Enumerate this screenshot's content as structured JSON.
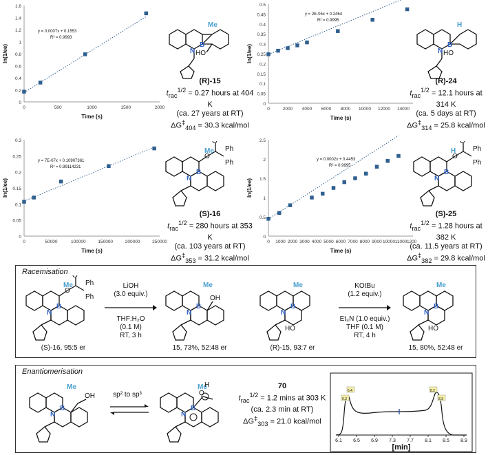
{
  "charts": [
    {
      "series_label": "",
      "equation": "y = 0.0007x + 0.1553",
      "r2": "R² = 0.9993",
      "xlabel": "Time (s)",
      "ylabel": "ln(1/ee)",
      "xticks": [
        "0",
        "500",
        "1000",
        "1500",
        "2000"
      ],
      "yticks": [
        "0",
        "0.2",
        "0.4",
        "0.6",
        "0.8",
        "1",
        "1.2",
        "1.4",
        "1.6"
      ],
      "compound": "(R)-15",
      "t_half": "= 0.27 hours at 404 K",
      "years": "(ca. 27 years at RT)",
      "dg": "= 30.3 kcal/mol",
      "dg_sub": "404"
    },
    {
      "equation": "y = 2E-05x + 0.2464",
      "r2": "R² = 0.9995",
      "xlabel": "Time (s)",
      "ylabel": "ln(1/ee)",
      "xticks": [
        "0",
        "2000",
        "4000",
        "6000",
        "8000",
        "10000",
        "12000",
        "14000"
      ],
      "yticks": [
        "0",
        "0.05",
        "0.1",
        "0.15",
        "0.2",
        "0.25",
        "0.3",
        "0.35",
        "0.4",
        "0.45",
        "0.5"
      ],
      "compound": "(R)-24",
      "t_half": "= 12.1 hours at 314 K",
      "years": "(ca. 5 days at RT)",
      "dg": "= 25.8 kcal/mol",
      "dg_sub": "314"
    },
    {
      "equation": "y = 7E-07x + 0.10907361",
      "r2": "R² = 0.99114231",
      "xlabel": "Time (s)",
      "ylabel": "ln(1/ee)",
      "xticks": [
        "0",
        "50000",
        "100000",
        "150000",
        "200000",
        "250000"
      ],
      "yticks": [
        "0",
        "0.05",
        "0.1",
        "0.15",
        "0.2",
        "0.25",
        "0.3"
      ],
      "compound": "(S)-16",
      "t_half": "= 280 hours at 353 K",
      "years": "(ca. 103 years at RT)",
      "dg": "= 31.2 kcal/mol",
      "dg_sub": "353"
    },
    {
      "equation": "y = 0.0002x + 0.4453",
      "r2": "R² = 0.9995",
      "xlabel": "Time (s)",
      "ylabel": "ln(1/ee)",
      "xticks": [
        "0",
        "1000",
        "2000",
        "3000",
        "4000",
        "5000",
        "6000",
        "7000",
        "8000",
        "9000",
        "10000",
        "11000",
        "12000"
      ],
      "yticks": [
        "0",
        "0.5",
        "1",
        "1.5",
        "2",
        "2.5"
      ],
      "compound": "(S)-25",
      "t_half": "= 1.28 hours at 382 K",
      "years": "(ca. 11.5 years at RT)",
      "dg": "= 29.8 kcal/mol",
      "dg_sub": "382"
    }
  ],
  "chart_data": [
    {
      "type": "scatter",
      "x": [
        0,
        240,
        900,
        1800
      ],
      "y": [
        0.17,
        0.32,
        0.79,
        1.47
      ],
      "xlim": [
        0,
        2000
      ],
      "ylim": [
        0,
        1.6
      ],
      "xlabel": "Time (s)",
      "ylabel": "ln(1/ee)",
      "trendline": {
        "slope": 0.0007,
        "intercept": 0.1553
      }
    },
    {
      "type": "scatter",
      "x": [
        0,
        1000,
        2000,
        3000,
        4000,
        7200,
        10800,
        14400
      ],
      "y": [
        0.247,
        0.265,
        0.278,
        0.292,
        0.307,
        0.364,
        0.421,
        0.474
      ],
      "xlim": [
        0,
        15000
      ],
      "ylim": [
        0,
        0.5
      ],
      "xlabel": "Time (s)",
      "ylabel": "ln(1/ee)",
      "trendline": {
        "slope": 2e-05,
        "intercept": 0.2464
      }
    },
    {
      "type": "scatter",
      "x": [
        0,
        18000,
        68000,
        156000,
        240000
      ],
      "y": [
        0.107,
        0.12,
        0.17,
        0.218,
        0.273
      ],
      "xlim": [
        0,
        250000
      ],
      "ylim": [
        0,
        0.3
      ],
      "xlabel": "Time (s)",
      "ylabel": "ln(1/ee)",
      "trendline": {
        "slope": 7e-07,
        "intercept": 0.10907361
      }
    },
    {
      "type": "scatter",
      "x": [
        0,
        900,
        1800,
        3600,
        4500,
        5400,
        6300,
        7200,
        8100,
        9000,
        9900,
        10800
      ],
      "y": [
        0.45,
        0.6,
        0.8,
        1.0,
        1.1,
        1.25,
        1.4,
        1.5,
        1.62,
        1.8,
        1.95,
        2.08
      ],
      "xlim": [
        0,
        12000
      ],
      "ylim": [
        0,
        2.5
      ],
      "xlabel": "Time (s)",
      "ylabel": "ln(1/ee)",
      "trendline": {
        "slope": 0.0002,
        "intercept": 0.4453
      }
    }
  ],
  "racemisation": {
    "title": "Racemisation",
    "left_reagent": "LiOH",
    "left_equiv": "(3.0 equiv.)",
    "left_solvent": "THF:H₂O",
    "left_conc": "(0.1 M)",
    "left_cond": "RT, 3 h",
    "left_start": "(S)-16, 95:5 er",
    "left_product": "15, 73%, 52:48 er",
    "right_reagent": "KOtBu",
    "right_equiv": "(1.2 equiv.)",
    "right_base": "Et₃N  (1.0 equiv.)",
    "right_solvent": "THF (0.1 M)",
    "right_cond": "RT, 4 h",
    "right_start": "(R)-15, 93:7 er",
    "right_product": "15, 80%, 52:48 er"
  },
  "enantiomerisation": {
    "title": "Enantiomerisation",
    "arrow_label": "sp² to sp³",
    "compound": "70",
    "t_half": "= 1.2 mins at 303 K",
    "mins": "(ca. 2.3 min at RT)",
    "dg": "= 21.0 kcal/mol",
    "dg_sub": "303",
    "hplc_xlabel": "[min]",
    "hplc_ticks": [
      "6.1",
      "6.5",
      "6.9",
      "7.3",
      "7.7",
      "8.1",
      "8.5",
      "8.9"
    ],
    "peak_labels": [
      "6.4",
      "6.3",
      "8.2",
      "8.3"
    ]
  },
  "labels": {
    "me": "Me",
    "h": "H",
    "n": "N",
    "b": "B",
    "ho": "HO",
    "oh": "OH",
    "o": "O",
    "ph": "Ph"
  }
}
